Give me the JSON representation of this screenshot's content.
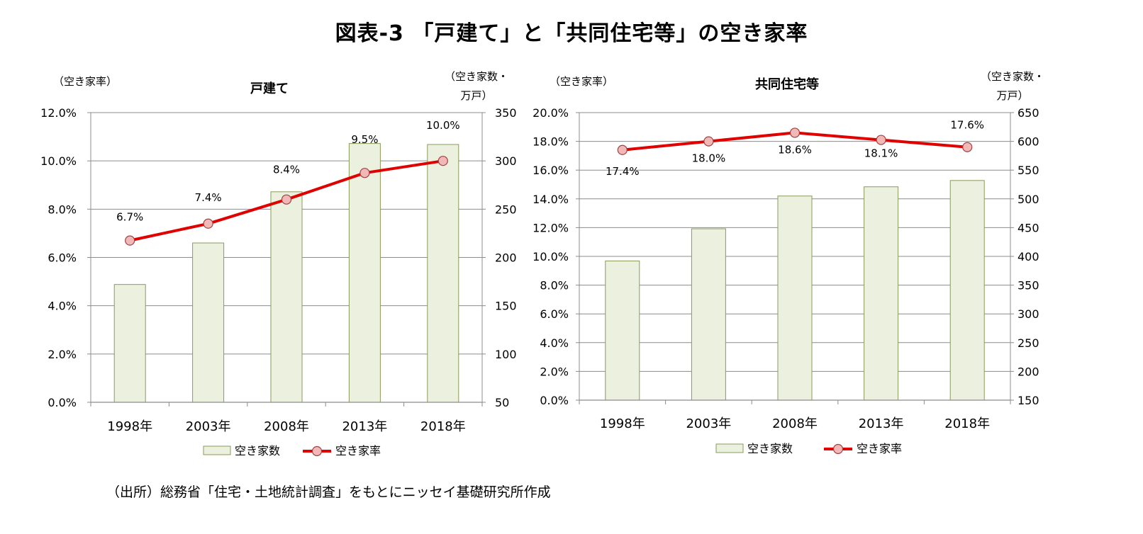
{
  "title": "図表-3 「戸建て」と「共同住宅等」の空き家率",
  "source": "（出所）総務省「住宅・土地統計調査」をもとにニッセイ基礎研究所作成",
  "colors": {
    "bar_fill": "#ebf1de",
    "bar_stroke": "#8a9a5b",
    "line": "#e00000",
    "marker_fill": "#f2b8b8",
    "marker_stroke": "#a04040",
    "grid": "#8c8c8c"
  },
  "chart_data": [
    {
      "type": "bar+line",
      "title": "戸建て",
      "left_axis_label": "（空き家率）",
      "right_axis_label_lines": [
        "（空き家数・",
        "万戸）"
      ],
      "categories": [
        "1998年",
        "2003年",
        "2008年",
        "2013年",
        "2018年"
      ],
      "left_axis": {
        "min": 0,
        "max": 0.12,
        "step": 0.02,
        "ticks": [
          "0.0%",
          "2.0%",
          "4.0%",
          "6.0%",
          "8.0%",
          "10.0%",
          "12.0%"
        ]
      },
      "right_axis": {
        "min": 50,
        "max": 350,
        "step": 50,
        "ticks": [
          "50",
          "100",
          "150",
          "200",
          "250",
          "300",
          "350"
        ]
      },
      "series": [
        {
          "name": "空き家数",
          "type": "bar",
          "axis": "right",
          "values": [
            172,
            215,
            268,
            318,
            317
          ]
        },
        {
          "name": "空き家率",
          "type": "line",
          "axis": "left",
          "values": [
            0.067,
            0.074,
            0.084,
            0.095,
            0.1
          ],
          "labels": [
            "6.7%",
            "7.4%",
            "8.4%",
            "9.5%",
            "10.0%"
          ]
        }
      ],
      "legend": [
        "空き家数",
        "空き家率"
      ],
      "legend_position": "bottom",
      "grid": true
    },
    {
      "type": "bar+line",
      "title": "共同住宅等",
      "left_axis_label": "（空き家率）",
      "right_axis_label_lines": [
        "（空き家数・",
        "万戸）"
      ],
      "categories": [
        "1998年",
        "2003年",
        "2008年",
        "2013年",
        "2018年"
      ],
      "left_axis": {
        "min": 0,
        "max": 0.2,
        "step": 0.02,
        "ticks": [
          "0.0%",
          "2.0%",
          "4.0%",
          "6.0%",
          "8.0%",
          "10.0%",
          "12.0%",
          "14.0%",
          "16.0%",
          "18.0%",
          "20.0%"
        ]
      },
      "right_axis": {
        "min": 150,
        "max": 650,
        "step": 50,
        "ticks": [
          "150",
          "200",
          "250",
          "300",
          "350",
          "400",
          "450",
          "500",
          "550",
          "600",
          "650"
        ]
      },
      "series": [
        {
          "name": "空き家数",
          "type": "bar",
          "axis": "right",
          "values": [
            392,
            448,
            505,
            521,
            532
          ]
        },
        {
          "name": "空き家率",
          "type": "line",
          "axis": "left",
          "values": [
            0.174,
            0.18,
            0.186,
            0.181,
            0.176
          ],
          "labels": [
            "17.4%",
            "18.0%",
            "18.6%",
            "18.1%",
            "17.6%"
          ]
        }
      ],
      "legend": [
        "空き家数",
        "空き家率"
      ],
      "legend_position": "bottom",
      "grid": true
    }
  ]
}
